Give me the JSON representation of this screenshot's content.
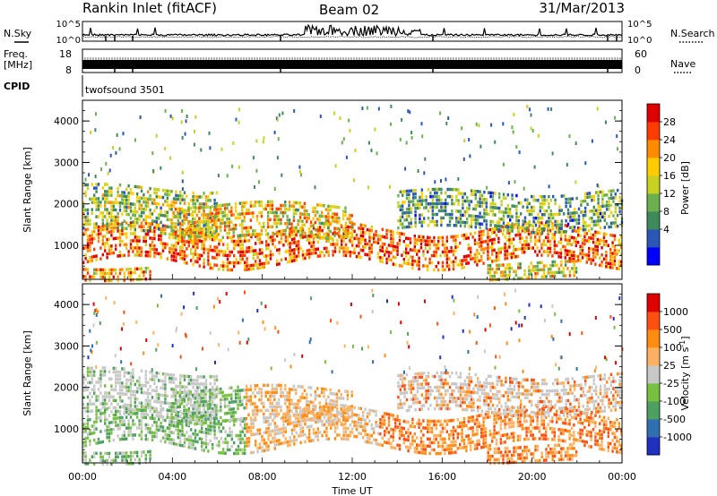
{
  "header": {
    "station": "Rankin Inlet (fitACF)",
    "beam": "Beam 02",
    "date": "31/Mar/2013"
  },
  "panels": {
    "nsky_label": "N.Sky",
    "nsearch_label": "N.Search",
    "nsky_ticks": [
      "10^5",
      "10^0"
    ],
    "nsearch_ticks": [
      "10^5",
      "10^0"
    ],
    "freq_label_1": "Freq.",
    "freq_label_2": "[MHz]",
    "freq_ticks": [
      "18",
      "8"
    ],
    "nave_label": "Nave",
    "nave_ticks": [
      "60",
      "0"
    ],
    "cpid_label": "CPID",
    "cpid_text": "twofsound 3501"
  },
  "chart_data": [
    {
      "type": "heatmap",
      "name": "power",
      "ylabel": "Slant Range [km]",
      "xlabel": "",
      "ylim": [
        180,
        4500
      ],
      "xlim": [
        0,
        24
      ],
      "yticks": [
        "1000",
        "2000",
        "3000",
        "4000"
      ],
      "xticks": [],
      "colorbar_label": "Power [dB]",
      "colorbar_ticks": [
        "28",
        "24",
        "20",
        "16",
        "12",
        "8",
        "4"
      ],
      "colorbar_colors": [
        "#0000ff",
        "#2a56b8",
        "#3f8a5a",
        "#6ab04c",
        "#c8d020",
        "#ffcc00",
        "#ff8c00",
        "#ff3c00",
        "#e00000"
      ],
      "bands": [
        {
          "t0": 0,
          "t1": 24,
          "r0": 600,
          "r1": 1400,
          "level": 0.8,
          "wave": 1.0
        },
        {
          "t0": 0,
          "t1": 6,
          "r0": 1300,
          "r1": 2400,
          "level": 0.45,
          "wave": 0.6
        },
        {
          "t0": 4,
          "t1": 12,
          "r0": 1200,
          "r1": 2000,
          "level": 0.6,
          "wave": 0.5
        },
        {
          "t0": 14,
          "t1": 24,
          "r0": 1400,
          "r1": 2300,
          "level": 0.35,
          "wave": 0.5
        },
        {
          "t0": 0,
          "t1": 3,
          "r0": 200,
          "r1": 500,
          "level": 0.7,
          "wave": 0.3
        },
        {
          "t0": 18,
          "t1": 22,
          "r0": 250,
          "r1": 600,
          "level": 0.55,
          "wave": 0.3
        }
      ]
    },
    {
      "type": "heatmap",
      "name": "velocity",
      "ylabel": "Slant Range [km]",
      "xlabel": "Time UT",
      "ylim": [
        180,
        4500
      ],
      "xlim": [
        0,
        24
      ],
      "yticks": [
        "1000",
        "2000",
        "3000",
        "4000"
      ],
      "xticks": [
        "00:00",
        "04:00",
        "08:00",
        "12:00",
        "16:00",
        "20:00",
        "00:00"
      ],
      "colorbar_label": "Velocity [m s",
      "colorbar_label_sup": "-1",
      "colorbar_label_end": "]",
      "colorbar_ticks": [
        "1000",
        "500",
        "100",
        "25",
        "-25",
        "-100",
        "-500",
        "-1000"
      ],
      "colorbar_colors": [
        "#2030c0",
        "#3070b0",
        "#4ea060",
        "#78c040",
        "#c8c8c8",
        "#ffb060",
        "#ff8c10",
        "#ff5010",
        "#e00000"
      ],
      "bands": [
        {
          "t0": 0,
          "t1": 24,
          "r0": 600,
          "r1": 1400,
          "level": 0.8,
          "wave": 1.0
        },
        {
          "t0": 0,
          "t1": 6,
          "r0": 1300,
          "r1": 2400,
          "level": 0.45,
          "wave": 0.6
        },
        {
          "t0": 4,
          "t1": 12,
          "r0": 1200,
          "r1": 2000,
          "level": 0.6,
          "wave": 0.5
        },
        {
          "t0": 14,
          "t1": 24,
          "r0": 1400,
          "r1": 2300,
          "level": 0.35,
          "wave": 0.5
        },
        {
          "t0": 0,
          "t1": 3,
          "r0": 200,
          "r1": 500,
          "level": 0.7,
          "wave": 0.3
        },
        {
          "t0": 18,
          "t1": 22,
          "r0": 250,
          "r1": 600,
          "level": 0.55,
          "wave": 0.3
        }
      ]
    }
  ]
}
